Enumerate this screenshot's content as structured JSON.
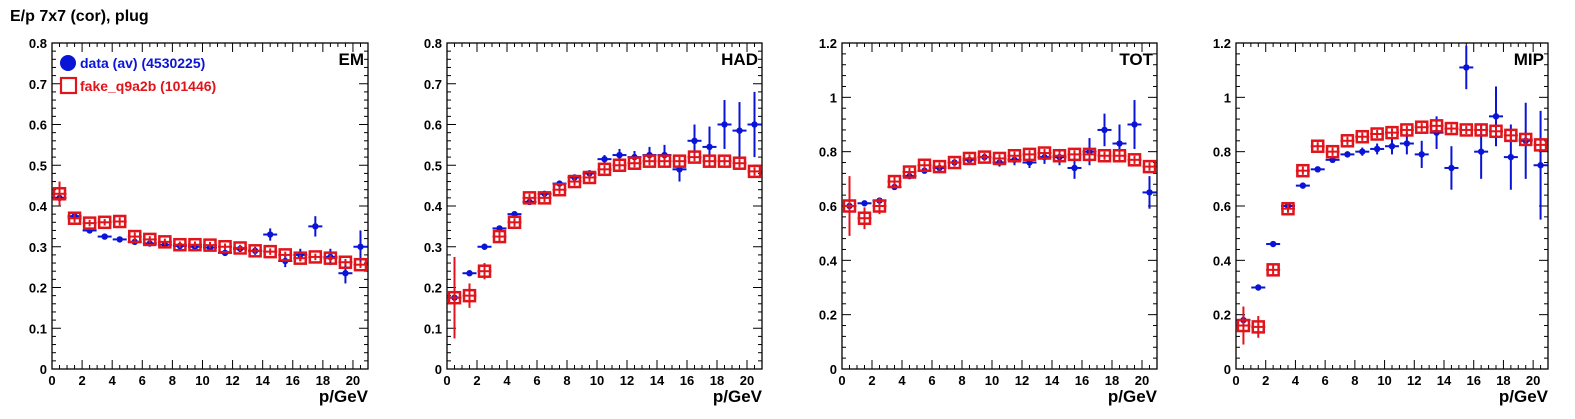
{
  "title": "E/p 7x7 (cor), plug",
  "colors": {
    "data": "#0a14d6",
    "fake": "#e0141a",
    "axis": "#000000"
  },
  "legend": [
    {
      "label": "data (av) (4530225)",
      "marker": "filled-circle",
      "color": "#0a14d6"
    },
    {
      "label": "fake_q9a2b (101446)",
      "marker": "open-square",
      "color": "#e0141a"
    }
  ],
  "chart_data": [
    {
      "type": "scatter",
      "panel_label": "EM",
      "xlabel": "p/GeV",
      "xlim": [
        0,
        21
      ],
      "ylim": [
        0,
        0.8
      ],
      "x_ticks": [
        "0",
        "2",
        "4",
        "6",
        "8",
        "10",
        "12",
        "14",
        "16",
        "18",
        "20"
      ],
      "y_ticks": [
        "0",
        "0.1",
        "0.2",
        "0.3",
        "0.4",
        "0.5",
        "0.6",
        "0.7",
        "0.8"
      ],
      "series": [
        {
          "name": "data (av) (4530225)",
          "x": [
            0.5,
            1.5,
            2.5,
            3.5,
            4.5,
            5.5,
            6.5,
            7.5,
            8.5,
            9.5,
            10.5,
            11.5,
            12.5,
            13.5,
            14.5,
            15.5,
            16.5,
            17.5,
            18.5,
            19.5,
            20.5
          ],
          "y": [
            0.42,
            0.375,
            0.34,
            0.325,
            0.318,
            0.312,
            0.308,
            0.305,
            0.302,
            0.3,
            0.298,
            0.285,
            0.295,
            0.29,
            0.33,
            0.265,
            0.28,
            0.35,
            0.275,
            0.235,
            0.3
          ],
          "yerr": [
            0.01,
            0.005,
            0.005,
            0.005,
            0.005,
            0.005,
            0.005,
            0.005,
            0.005,
            0.005,
            0.005,
            0.007,
            0.008,
            0.01,
            0.015,
            0.015,
            0.015,
            0.025,
            0.02,
            0.025,
            0.04
          ]
        },
        {
          "name": "fake_q9a2b (101446)",
          "x": [
            0.5,
            1.5,
            2.5,
            3.5,
            4.5,
            5.5,
            6.5,
            7.5,
            8.5,
            9.5,
            10.5,
            11.5,
            12.5,
            13.5,
            14.5,
            15.5,
            16.5,
            17.5,
            18.5,
            19.5,
            20.5
          ],
          "y": [
            0.43,
            0.37,
            0.358,
            0.36,
            0.362,
            0.325,
            0.318,
            0.312,
            0.305,
            0.305,
            0.304,
            0.3,
            0.297,
            0.29,
            0.288,
            0.28,
            0.272,
            0.275,
            0.272,
            0.262,
            0.256
          ],
          "yerr": [
            0.03,
            0.01,
            0.008,
            0.008,
            0.01,
            0.01,
            0.008,
            0.008,
            0.008,
            0.008,
            0.008,
            0.008,
            0.008,
            0.008,
            0.008,
            0.008,
            0.008,
            0.008,
            0.008,
            0.008,
            0.008
          ]
        }
      ]
    },
    {
      "type": "scatter",
      "panel_label": "HAD",
      "xlabel": "p/GeV",
      "xlim": [
        0,
        21
      ],
      "ylim": [
        0,
        0.8
      ],
      "x_ticks": [
        "0",
        "2",
        "4",
        "6",
        "8",
        "10",
        "12",
        "14",
        "16",
        "18",
        "20"
      ],
      "y_ticks": [
        "0",
        "0.1",
        "0.2",
        "0.3",
        "0.4",
        "0.5",
        "0.6",
        "0.7",
        "0.8"
      ],
      "series": [
        {
          "name": "data (av) (4530225)",
          "x": [
            0.5,
            1.5,
            2.5,
            3.5,
            4.5,
            5.5,
            6.5,
            7.5,
            8.5,
            9.5,
            10.5,
            11.5,
            12.5,
            13.5,
            14.5,
            15.5,
            16.5,
            17.5,
            18.5,
            19.5,
            20.5
          ],
          "y": [
            0.175,
            0.235,
            0.3,
            0.345,
            0.38,
            0.41,
            0.43,
            0.455,
            0.47,
            0.48,
            0.515,
            0.525,
            0.52,
            0.525,
            0.525,
            0.49,
            0.56,
            0.545,
            0.6,
            0.585,
            0.6
          ],
          "yerr": [
            0.02,
            0.005,
            0.005,
            0.005,
            0.005,
            0.005,
            0.005,
            0.005,
            0.005,
            0.008,
            0.01,
            0.015,
            0.015,
            0.02,
            0.025,
            0.03,
            0.04,
            0.05,
            0.06,
            0.07,
            0.08
          ]
        },
        {
          "name": "fake_q9a2b (101446)",
          "x": [
            0.5,
            1.5,
            2.5,
            3.5,
            4.5,
            5.5,
            6.5,
            7.5,
            8.5,
            9.5,
            10.5,
            11.5,
            12.5,
            13.5,
            14.5,
            15.5,
            16.5,
            17.5,
            18.5,
            19.5,
            20.5
          ],
          "y": [
            0.175,
            0.18,
            0.24,
            0.325,
            0.36,
            0.42,
            0.42,
            0.44,
            0.46,
            0.47,
            0.49,
            0.5,
            0.505,
            0.51,
            0.51,
            0.51,
            0.52,
            0.51,
            0.51,
            0.505,
            0.485
          ],
          "yerr": [
            0.1,
            0.03,
            0.02,
            0.015,
            0.01,
            0.01,
            0.01,
            0.01,
            0.01,
            0.01,
            0.01,
            0.01,
            0.01,
            0.01,
            0.01,
            0.01,
            0.01,
            0.01,
            0.01,
            0.01,
            0.01
          ]
        }
      ]
    },
    {
      "type": "scatter",
      "panel_label": "TOT",
      "xlabel": "p/GeV",
      "xlim": [
        0,
        21
      ],
      "ylim": [
        0,
        1.2
      ],
      "x_ticks": [
        "0",
        "2",
        "4",
        "6",
        "8",
        "10",
        "12",
        "14",
        "16",
        "18",
        "20"
      ],
      "y_ticks": [
        "0",
        "0.2",
        "0.4",
        "0.6",
        "0.8",
        "1",
        "1.2"
      ],
      "series": [
        {
          "name": "data (av) (4530225)",
          "x": [
            0.5,
            1.5,
            2.5,
            3.5,
            4.5,
            5.5,
            6.5,
            7.5,
            8.5,
            9.5,
            10.5,
            11.5,
            12.5,
            13.5,
            14.5,
            15.5,
            16.5,
            17.5,
            18.5,
            19.5,
            20.5
          ],
          "y": [
            0.6,
            0.61,
            0.62,
            0.67,
            0.71,
            0.73,
            0.74,
            0.76,
            0.77,
            0.78,
            0.76,
            0.77,
            0.76,
            0.78,
            0.78,
            0.74,
            0.8,
            0.88,
            0.83,
            0.9,
            0.65
          ],
          "yerr": [
            0.02,
            0.008,
            0.008,
            0.008,
            0.008,
            0.008,
            0.008,
            0.008,
            0.008,
            0.01,
            0.015,
            0.02,
            0.02,
            0.025,
            0.03,
            0.04,
            0.05,
            0.06,
            0.07,
            0.09,
            0.06
          ]
        },
        {
          "name": "fake_q9a2b (101446)",
          "x": [
            0.5,
            1.5,
            2.5,
            3.5,
            4.5,
            5.5,
            6.5,
            7.5,
            8.5,
            9.5,
            10.5,
            11.5,
            12.5,
            13.5,
            14.5,
            15.5,
            16.5,
            17.5,
            18.5,
            19.5,
            20.5
          ],
          "y": [
            0.6,
            0.555,
            0.6,
            0.69,
            0.725,
            0.75,
            0.745,
            0.76,
            0.775,
            0.78,
            0.775,
            0.785,
            0.79,
            0.795,
            0.785,
            0.79,
            0.79,
            0.785,
            0.785,
            0.77,
            0.745
          ],
          "yerr": [
            0.11,
            0.04,
            0.03,
            0.02,
            0.015,
            0.015,
            0.015,
            0.015,
            0.015,
            0.015,
            0.015,
            0.015,
            0.015,
            0.015,
            0.015,
            0.015,
            0.015,
            0.015,
            0.015,
            0.015,
            0.015
          ]
        }
      ]
    },
    {
      "type": "scatter",
      "panel_label": "MIP",
      "xlabel": "p/GeV",
      "xlim": [
        0,
        21
      ],
      "ylim": [
        0,
        1.2
      ],
      "x_ticks": [
        "0",
        "2",
        "4",
        "6",
        "8",
        "10",
        "12",
        "14",
        "16",
        "18",
        "20"
      ],
      "y_ticks": [
        "0",
        "0.2",
        "0.4",
        "0.6",
        "0.8",
        "1",
        "1.2"
      ],
      "series": [
        {
          "name": "data (av) (4530225)",
          "x": [
            0.5,
            1.5,
            2.5,
            3.5,
            4.5,
            5.5,
            6.5,
            7.5,
            8.5,
            9.5,
            10.5,
            11.5,
            12.5,
            13.5,
            14.5,
            15.5,
            16.5,
            17.5,
            18.5,
            19.5,
            20.5
          ],
          "y": [
            0.18,
            0.3,
            0.46,
            0.6,
            0.675,
            0.735,
            0.77,
            0.79,
            0.8,
            0.81,
            0.82,
            0.83,
            0.79,
            0.87,
            0.74,
            1.11,
            0.8,
            0.93,
            0.78,
            0.84,
            0.75
          ],
          "yerr": [
            0.02,
            0.008,
            0.008,
            0.008,
            0.008,
            0.008,
            0.01,
            0.01,
            0.015,
            0.02,
            0.03,
            0.04,
            0.05,
            0.06,
            0.08,
            0.08,
            0.1,
            0.11,
            0.12,
            0.14,
            0.2
          ]
        },
        {
          "name": "fake_q9a2b (101446)",
          "x": [
            0.5,
            1.5,
            2.5,
            3.5,
            4.5,
            5.5,
            6.5,
            7.5,
            8.5,
            9.5,
            10.5,
            11.5,
            12.5,
            13.5,
            14.5,
            15.5,
            16.5,
            17.5,
            18.5,
            19.5,
            20.5
          ],
          "y": [
            0.16,
            0.155,
            0.365,
            0.59,
            0.73,
            0.82,
            0.8,
            0.84,
            0.855,
            0.865,
            0.87,
            0.88,
            0.89,
            0.895,
            0.885,
            0.88,
            0.88,
            0.875,
            0.86,
            0.845,
            0.825
          ],
          "yerr": [
            0.07,
            0.04,
            0.02,
            0.015,
            0.015,
            0.015,
            0.015,
            0.015,
            0.015,
            0.015,
            0.015,
            0.015,
            0.015,
            0.015,
            0.015,
            0.015,
            0.015,
            0.015,
            0.015,
            0.015,
            0.015
          ]
        }
      ]
    }
  ]
}
